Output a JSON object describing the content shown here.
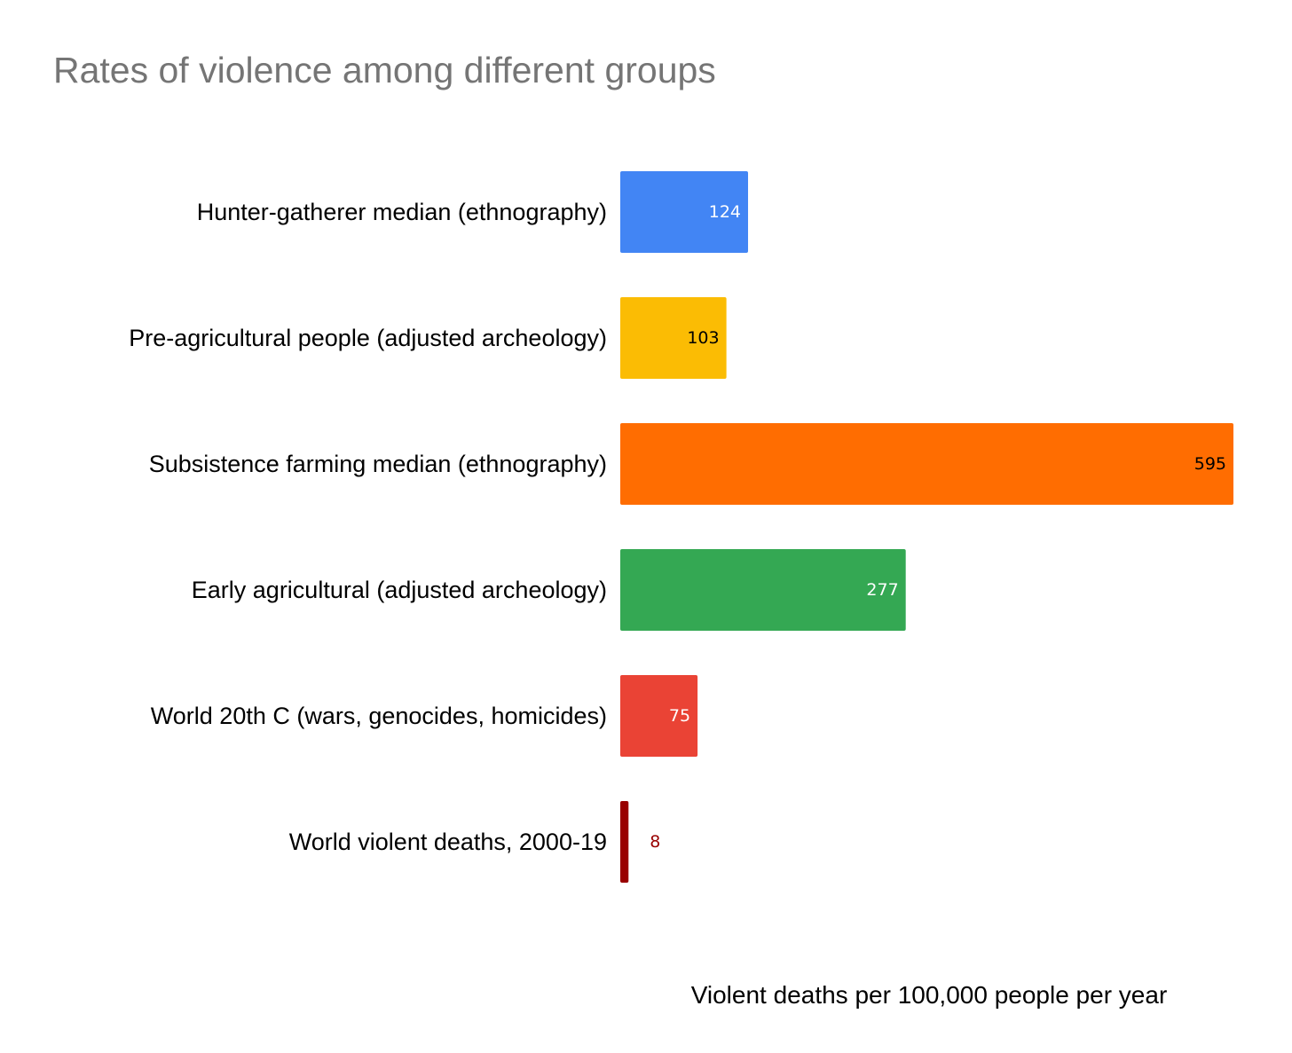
{
  "chart_data": {
    "type": "bar",
    "orientation": "horizontal",
    "title": "Rates of violence among different groups",
    "xlabel": "Violent deaths per 100,000 people per year",
    "ylabel": "",
    "categories": [
      "Hunter-gatherer median (ethnography)",
      "Pre-agricultural people (adjusted archeology)",
      "Subsistence farming median (ethnography)",
      "Early agricultural (adjusted archeology)",
      "World 20th C (wars, genocides, homicides)",
      "World violent deaths, 2000-19"
    ],
    "values": [
      124,
      103,
      595,
      277,
      75,
      8
    ],
    "data_labels": [
      "124",
      "103",
      "595",
      "277",
      "75",
      "8"
    ],
    "colors": [
      "#4285F4",
      "#FBBC04",
      "#FF6D01",
      "#34A853",
      "#EA4335",
      "#990000"
    ],
    "label_colors": [
      "#ffffff",
      "#000000",
      "#000000",
      "#ffffff",
      "#ffffff",
      "#990000"
    ],
    "xlim": [
      0,
      595
    ],
    "grid": false,
    "legend": "none"
  }
}
